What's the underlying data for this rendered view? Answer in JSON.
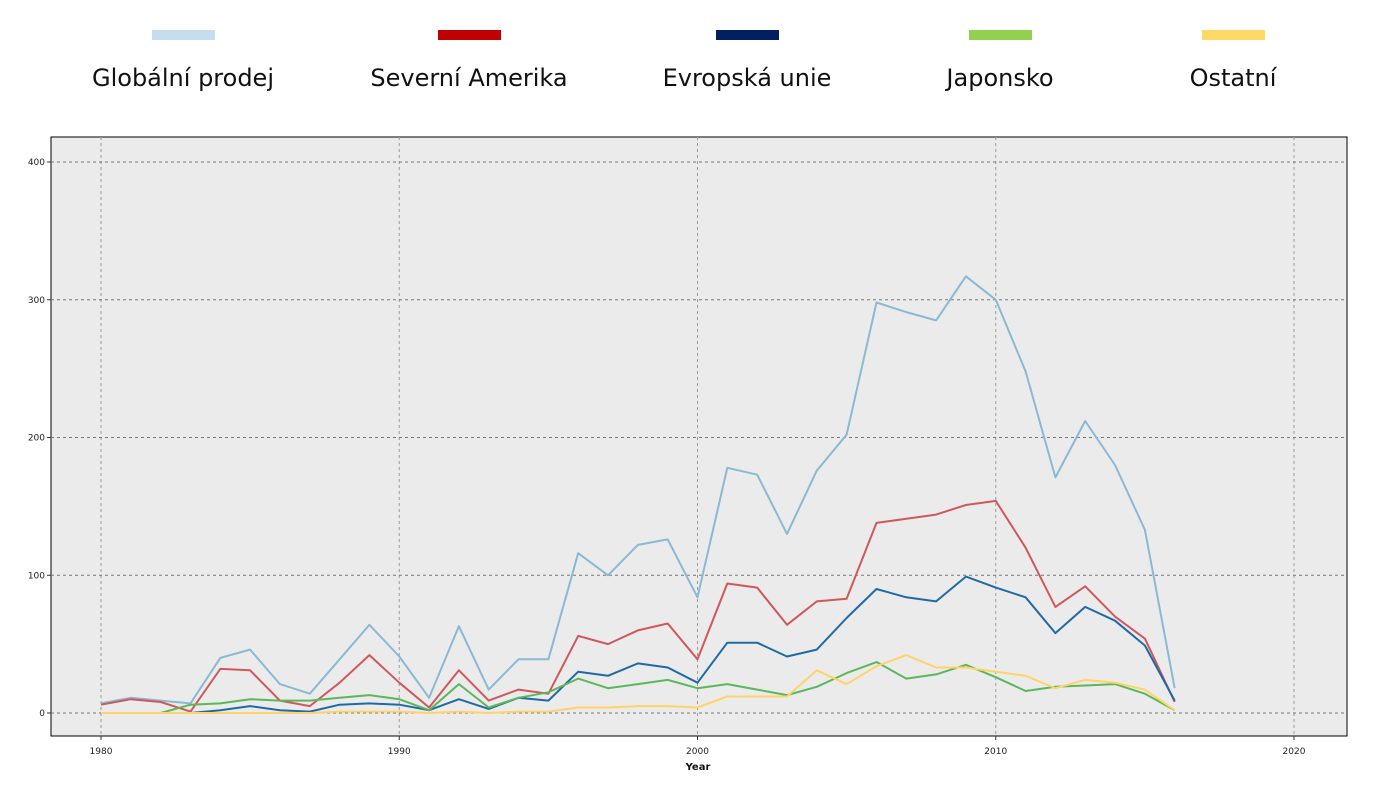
{
  "chart_data": {
    "type": "line",
    "xlabel": "Year",
    "ylabel": "",
    "xlim": [
      1980,
      2020
    ],
    "ylim": [
      0,
      400
    ],
    "xticks": [
      1980,
      1990,
      2000,
      2010,
      2020
    ],
    "yticks": [
      0,
      100,
      200,
      300,
      400
    ],
    "grid": true,
    "legend_position": "top",
    "x": [
      1980,
      1981,
      1982,
      1983,
      1984,
      1985,
      1986,
      1987,
      1988,
      1989,
      1990,
      1991,
      1992,
      1993,
      1994,
      1995,
      1996,
      1997,
      1998,
      1999,
      2000,
      2001,
      2002,
      2003,
      2004,
      2005,
      2006,
      2007,
      2008,
      2009,
      2010,
      2011,
      2012,
      2013,
      2014,
      2015,
      2016
    ],
    "series": [
      {
        "name": "Globální prodej",
        "color": "#c4ddf0",
        "line_color": "#8ab9d4",
        "values": [
          7,
          11,
          9,
          7,
          40,
          46,
          21,
          14,
          39,
          64,
          41,
          11,
          63,
          17,
          39,
          39,
          116,
          100,
          122,
          126,
          84,
          178,
          173,
          130,
          176,
          202,
          298,
          291,
          285,
          317,
          300,
          248,
          171,
          212,
          180,
          133,
          18
        ]
      },
      {
        "name": "Severní Amerika",
        "color": "#c00000",
        "line_color": "#d0575b",
        "values": [
          6,
          10,
          8,
          1,
          32,
          31,
          9,
          5,
          22,
          42,
          22,
          4,
          31,
          9,
          17,
          14,
          56,
          50,
          60,
          65,
          39,
          94,
          91,
          64,
          81,
          83,
          138,
          141,
          144,
          151,
          154,
          120,
          77,
          92,
          70,
          54,
          8
        ]
      },
      {
        "name": "Evropská unie",
        "color": "#002060",
        "line_color": "#1f6aa5",
        "values": [
          0,
          0,
          0,
          0,
          2,
          5,
          2,
          1,
          6,
          7,
          6,
          2,
          10,
          3,
          11,
          9,
          30,
          27,
          36,
          33,
          22,
          51,
          51,
          41,
          46,
          69,
          90,
          84,
          81,
          99,
          91,
          84,
          58,
          77,
          67,
          49,
          9
        ]
      },
      {
        "name": "Japonsko",
        "color": "#92d050",
        "line_color": "#5ab85a",
        "values": [
          0,
          0,
          0,
          6,
          7,
          10,
          9,
          9,
          11,
          13,
          10,
          2,
          21,
          4,
          11,
          15,
          25,
          18,
          21,
          24,
          18,
          21,
          17,
          13,
          19,
          29,
          37,
          25,
          28,
          35,
          26,
          16,
          19,
          20,
          21,
          14,
          2
        ]
      },
      {
        "name": "Ostatní",
        "color": "#ffd966",
        "line_color": "#ffd36a",
        "values": [
          0,
          0,
          0,
          0,
          0,
          0,
          0,
          0,
          1,
          1,
          1,
          0,
          1,
          0,
          1,
          1,
          4,
          4,
          5,
          5,
          4,
          12,
          12,
          12,
          31,
          21,
          34,
          42,
          33,
          33,
          30,
          27,
          18,
          24,
          22,
          17,
          2
        ]
      }
    ]
  }
}
